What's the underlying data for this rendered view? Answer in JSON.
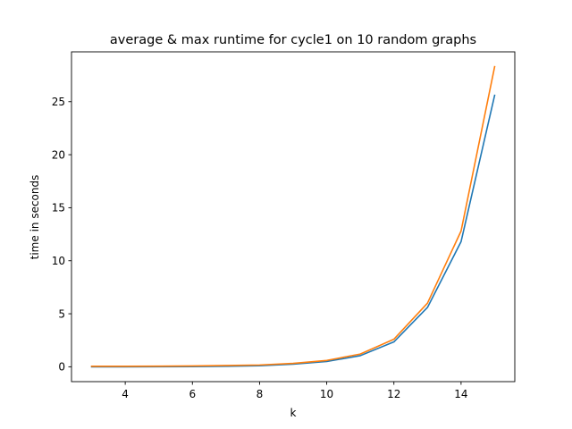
{
  "chart_data": {
    "type": "line",
    "title": "average & max runtime for cycle1 on 10 random graphs",
    "xlabel": "k",
    "ylabel": "time in seconds",
    "x": [
      3,
      4,
      5,
      6,
      7,
      8,
      9,
      10,
      11,
      12,
      13,
      14,
      15
    ],
    "xlim": [
      2.4,
      15.6
    ],
    "ylim": [
      -1.4,
      29.7
    ],
    "xticks": [
      4,
      6,
      8,
      10,
      12,
      14
    ],
    "yticks": [
      0,
      5,
      10,
      15,
      20,
      25
    ],
    "grid": false,
    "series": [
      {
        "name": "average",
        "color": "#1f77b4",
        "values": [
          0.0,
          0.0,
          0.01,
          0.02,
          0.05,
          0.1,
          0.25,
          0.5,
          1.05,
          2.35,
          5.6,
          11.8,
          25.6
        ]
      },
      {
        "name": "max",
        "color": "#ff7f0e",
        "values": [
          0.05,
          0.05,
          0.06,
          0.08,
          0.12,
          0.17,
          0.32,
          0.6,
          1.2,
          2.6,
          6.0,
          12.8,
          28.3
        ]
      }
    ]
  }
}
